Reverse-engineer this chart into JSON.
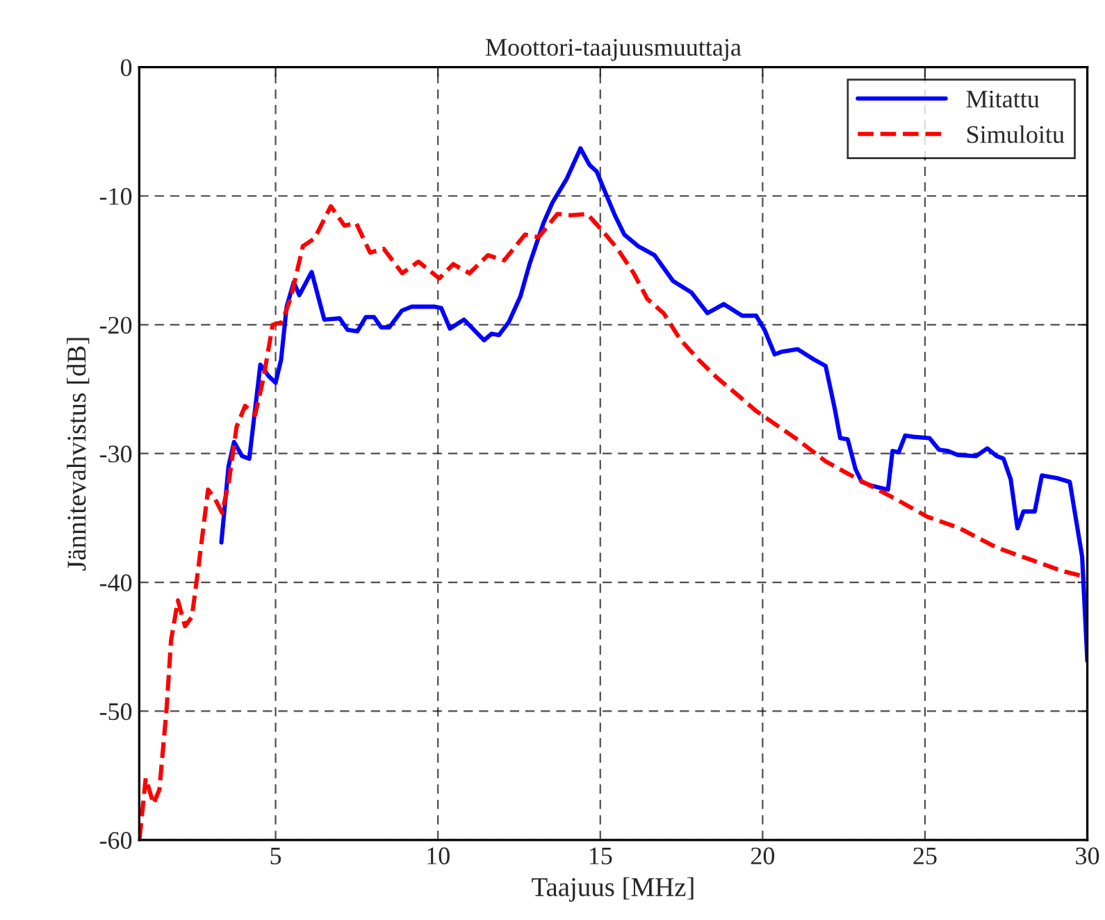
{
  "chart_data": {
    "type": "line",
    "title": "Moottori-taajuusmuuttaja",
    "xlabel": "Taajuus [MHz]",
    "ylabel": "Jännitevahvistus [dB]",
    "xlim": [
      0.8,
      30
    ],
    "xticks": [
      5,
      10,
      15,
      20,
      25,
      30
    ],
    "ylim": [
      -60,
      0
    ],
    "yticks": [
      -60,
      -50,
      -40,
      -30,
      -20,
      -10,
      0
    ],
    "grid": true,
    "legend": "top right",
    "marker": "none",
    "series": [
      {
        "name": "Mitattu",
        "color": "#0000ff",
        "line_style": "solid",
        "x": [
          3.33,
          3.55,
          3.72,
          3.97,
          4.19,
          4.53,
          4.79,
          5.0,
          5.17,
          5.34,
          5.56,
          5.73,
          6.11,
          6.5,
          6.97,
          7.22,
          7.52,
          7.78,
          8.03,
          8.25,
          8.5,
          8.89,
          9.19,
          9.91,
          10.1,
          10.37,
          10.8,
          11.42,
          11.65,
          11.88,
          12.18,
          12.54,
          12.82,
          13.25,
          13.53,
          13.96,
          14.39,
          14.67,
          14.89,
          15.1,
          15.45,
          15.74,
          16.17,
          16.67,
          17.24,
          17.81,
          18.3,
          18.8,
          19.37,
          19.8,
          20.06,
          20.37,
          20.58,
          21.08,
          21.58,
          21.94,
          22.22,
          22.39,
          22.62,
          22.86,
          23.05,
          23.36,
          23.86,
          24.0,
          24.19,
          24.39,
          24.64,
          25.14,
          25.43,
          25.71,
          26.0,
          26.57,
          26.92,
          27.21,
          27.42,
          27.64,
          27.85,
          28.03,
          28.38,
          28.6,
          29.06,
          29.46,
          29.84,
          30.0
        ],
        "values": [
          -36.9,
          -31.0,
          -29.1,
          -30.2,
          -30.4,
          -23.1,
          -24.0,
          -24.5,
          -22.7,
          -18.6,
          -16.7,
          -17.7,
          -15.9,
          -19.6,
          -19.5,
          -20.4,
          -20.5,
          -19.4,
          -19.4,
          -20.2,
          -20.2,
          -18.9,
          -18.6,
          -18.6,
          -18.7,
          -20.3,
          -19.6,
          -21.2,
          -20.7,
          -20.8,
          -19.8,
          -17.8,
          -15.3,
          -12.1,
          -10.5,
          -8.7,
          -6.3,
          -7.6,
          -8.1,
          -9.4,
          -11.5,
          -13.0,
          -13.9,
          -14.6,
          -16.6,
          -17.5,
          -19.1,
          -18.4,
          -19.3,
          -19.3,
          -20.4,
          -22.3,
          -22.1,
          -21.9,
          -22.7,
          -23.2,
          -26.5,
          -28.8,
          -28.9,
          -31.2,
          -32.2,
          -32.5,
          -32.8,
          -29.8,
          -29.9,
          -28.6,
          -28.7,
          -28.8,
          -29.7,
          -29.8,
          -30.1,
          -30.2,
          -29.6,
          -30.2,
          -30.4,
          -32.0,
          -35.8,
          -34.5,
          -34.5,
          -31.7,
          -31.9,
          -32.2,
          -38.0,
          -46.1
        ]
      },
      {
        "name": "Simuloitu",
        "color": "#ff0000",
        "line_style": "dashed",
        "x": [
          0.81,
          1.0,
          1.24,
          1.42,
          1.64,
          1.78,
          1.99,
          2.21,
          2.42,
          2.63,
          2.92,
          3.13,
          3.35,
          3.56,
          3.8,
          4.06,
          4.37,
          4.63,
          4.91,
          5.2,
          5.48,
          5.84,
          6.2,
          6.7,
          7.12,
          7.48,
          7.91,
          8.33,
          8.9,
          9.4,
          10.04,
          10.47,
          10.97,
          11.54,
          12.04,
          12.68,
          13.1,
          13.68,
          14.1,
          14.6,
          15.03,
          15.53,
          16.03,
          16.45,
          16.95,
          17.45,
          18.02,
          18.59,
          19.3,
          19.8,
          21.01,
          21.94,
          22.94,
          23.93,
          25.07,
          26.07,
          27.21,
          28.21,
          29.2,
          30.0
        ],
        "values": [
          -59.9,
          -55.2,
          -57.2,
          -56.1,
          -49.9,
          -44.5,
          -41.4,
          -43.4,
          -42.7,
          -38.7,
          -32.8,
          -33.5,
          -34.6,
          -32.2,
          -27.9,
          -26.3,
          -27.0,
          -24.1,
          -20.0,
          -19.8,
          -17.8,
          -13.9,
          -13.3,
          -10.8,
          -12.3,
          -12.1,
          -14.4,
          -14.1,
          -16.0,
          -15.1,
          -16.4,
          -15.3,
          -16.0,
          -14.6,
          -15.0,
          -13.0,
          -13.2,
          -11.4,
          -11.5,
          -11.4,
          -12.6,
          -14.1,
          -16.0,
          -18.0,
          -19.1,
          -21.1,
          -22.7,
          -24.1,
          -25.6,
          -26.7,
          -28.8,
          -30.6,
          -32.0,
          -33.3,
          -34.9,
          -35.8,
          -37.3,
          -38.2,
          -39.1,
          -39.6
        ]
      }
    ]
  }
}
